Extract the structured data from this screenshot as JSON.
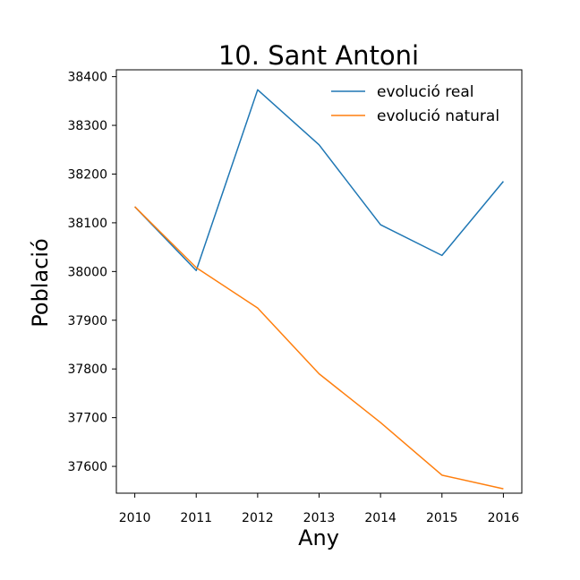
{
  "chart_data": {
    "type": "line",
    "title": "10. Sant Antoni",
    "xlabel": "Any",
    "ylabel": "Població",
    "x": [
      2010,
      2011,
      2012,
      2013,
      2014,
      2015,
      2016
    ],
    "y_ticks": [
      37600,
      37700,
      37800,
      37900,
      38000,
      38100,
      38200,
      38300,
      38400
    ],
    "xlim": [
      2009.7,
      2016.3
    ],
    "ylim": [
      37545,
      38414
    ],
    "grid": false,
    "legend_position": "top-right",
    "series": [
      {
        "name": "evolució real",
        "color": "#1f77b4",
        "values": [
          38133,
          38002,
          38373,
          38260,
          38096,
          38033,
          38185
        ]
      },
      {
        "name": "evolució natural",
        "color": "#ff7f0e",
        "values": [
          38133,
          38008,
          37925,
          37790,
          37690,
          37582,
          37554
        ]
      }
    ]
  }
}
